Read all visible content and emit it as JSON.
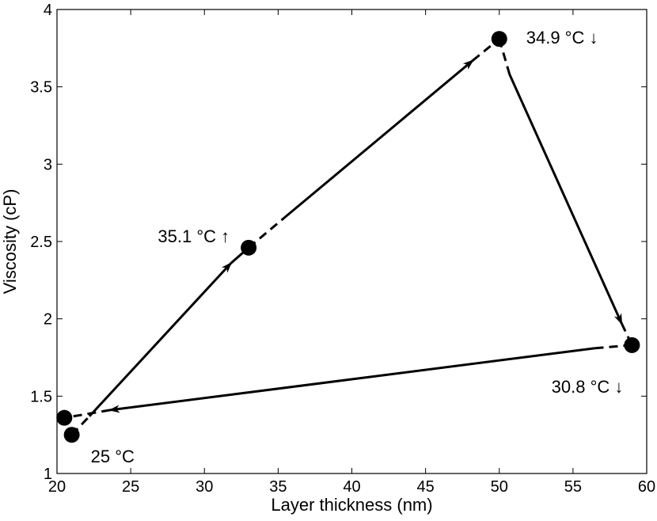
{
  "chart_data": {
    "type": "scatter",
    "title": "",
    "xlabel": "Layer thickness (nm)",
    "ylabel": "Viscosity (cP)",
    "xlim": [
      20,
      60
    ],
    "ylim": [
      1,
      4
    ],
    "xticks": [
      20,
      25,
      30,
      35,
      40,
      45,
      50,
      55,
      60
    ],
    "yticks": [
      1,
      1.5,
      2,
      2.5,
      3,
      3.5,
      4
    ],
    "xtick_labels": [
      "20",
      "25",
      "30",
      "35",
      "40",
      "45",
      "50",
      "55",
      "60"
    ],
    "ytick_labels": [
      "1",
      "1.5",
      "2",
      "2.5",
      "3",
      "3.5",
      "4"
    ],
    "grid": false,
    "legend": "none",
    "points": [
      {
        "x": 21.0,
        "y": 1.25,
        "label": "25 °C"
      },
      {
        "x": 20.5,
        "y": 1.36,
        "label": ""
      },
      {
        "x": 33.0,
        "y": 2.46,
        "label": "35.1 °C ↑"
      },
      {
        "x": 50.0,
        "y": 3.81,
        "label": "34.9 °C ↓"
      },
      {
        "x": 59.0,
        "y": 1.83,
        "label": "30.8 °C ↓"
      }
    ],
    "path_segments": [
      {
        "from": [
          21.0,
          1.25
        ],
        "to": [
          22.2,
          1.37
        ],
        "style": "dashed"
      },
      {
        "from": [
          22.2,
          1.37
        ],
        "to": [
          31.8,
          2.36
        ],
        "style": "solid",
        "arrow": true
      },
      {
        "from": [
          31.8,
          2.36
        ],
        "to": [
          33.0,
          2.46
        ],
        "style": "solid"
      },
      {
        "from": [
          33.0,
          2.46
        ],
        "to": [
          35.5,
          2.66
        ],
        "style": "dashed"
      },
      {
        "from": [
          35.5,
          2.66
        ],
        "to": [
          48.2,
          3.67
        ],
        "style": "solid",
        "arrow": true
      },
      {
        "from": [
          48.2,
          3.67
        ],
        "to": [
          50.0,
          3.81
        ],
        "style": "dashed"
      },
      {
        "from": [
          50.0,
          3.81
        ],
        "to": [
          50.7,
          3.58
        ],
        "style": "dashed"
      },
      {
        "from": [
          50.7,
          3.58
        ],
        "to": [
          58.3,
          1.97
        ],
        "style": "solid",
        "arrow": true
      },
      {
        "from": [
          58.3,
          1.97
        ],
        "to": [
          59.0,
          1.83
        ],
        "style": "dashed"
      },
      {
        "from": [
          59.0,
          1.83
        ],
        "to": [
          56.5,
          1.81
        ],
        "style": "dashed"
      },
      {
        "from": [
          56.5,
          1.81
        ],
        "to": [
          23.6,
          1.41
        ],
        "style": "solid",
        "arrow": true
      },
      {
        "from": [
          23.6,
          1.41
        ],
        "to": [
          20.5,
          1.36
        ],
        "style": "dashed"
      }
    ],
    "colors": {
      "line": "#000000",
      "marker": "#000000",
      "background": "#ffffff"
    }
  }
}
